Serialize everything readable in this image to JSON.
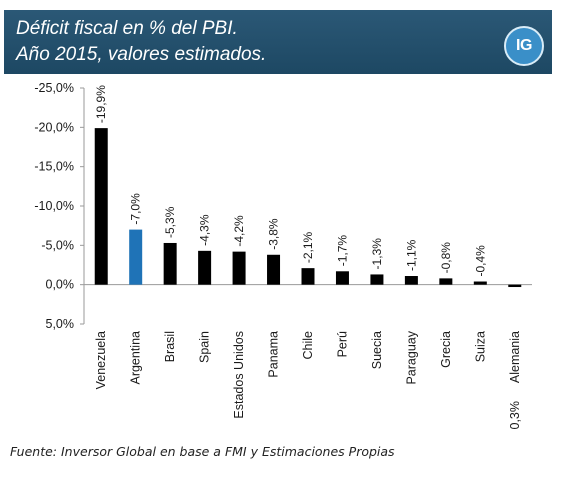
{
  "header": {
    "title_line1": "Déficit fiscal en % del PBI.",
    "title_line2": "Año 2015, valores estimados.",
    "logo_text": "IG"
  },
  "source": "Fuente: Inversor Global en base a FMI y Estimaciones Propias",
  "colors": {
    "bar": "#000000",
    "highlight": "#1f73b7",
    "header_bg": "#1f4b66"
  },
  "chart_data": {
    "type": "bar",
    "categories": [
      "Venezuela",
      "Argentina",
      "Brasil",
      "Spain",
      "Estados Unidos",
      "Panama",
      "Chile",
      "Perú",
      "Suecia",
      "Paraguay",
      "Grecia",
      "Suiza",
      "Alemania"
    ],
    "values": [
      -19.9,
      -7.0,
      -5.3,
      -4.3,
      -4.2,
      -3.8,
      -2.1,
      -1.7,
      -1.3,
      -1.1,
      -0.8,
      -0.4,
      0.3
    ],
    "data_labels": [
      "-19,9%",
      "-7,0%",
      "-5,3%",
      "-4,3%",
      "-4,2%",
      "-3,8%",
      "-2,1%",
      "-1,7%",
      "-1,3%",
      "-1,1%",
      "-0,8%",
      "-0,4%",
      "0,3%"
    ],
    "highlight_index": 1,
    "yticks": [
      -25,
      -20,
      -15,
      -10,
      -5,
      0,
      5
    ],
    "ytick_labels": [
      "-25,0%",
      "-20,0%",
      "-15,0%",
      "-10,0%",
      "-5,0%",
      "0,0%",
      "5,0%"
    ],
    "ylim": [
      -25,
      5
    ],
    "y_inverted": true,
    "grid": false,
    "legend": "none"
  }
}
